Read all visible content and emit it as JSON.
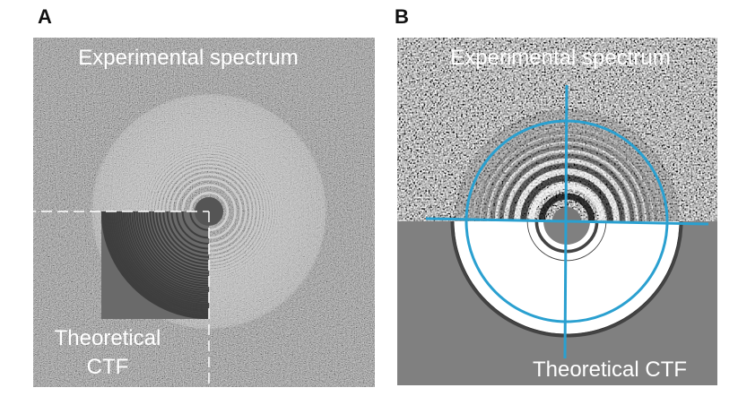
{
  "panels": [
    {
      "label": "A",
      "top_text": "Experimental spectrum",
      "bottom_text": [
        "Theoretical",
        "CTF"
      ]
    },
    {
      "label": "B",
      "top_text": "Experimental spectrum",
      "bottom_text": "Theoretical CTF"
    }
  ]
}
